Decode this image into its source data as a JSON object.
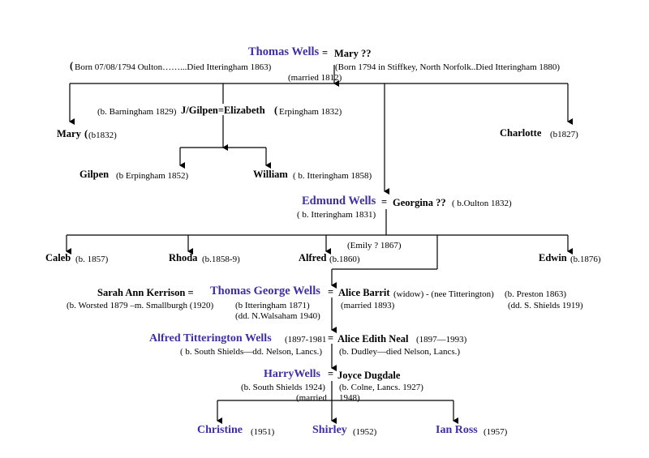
{
  "tree": {
    "gen1": {
      "husband_name": "Thomas Wells",
      "eq": "=",
      "wife_name": "Mary ??",
      "husband_note_paren": "(",
      "husband_note": "Born 07/08/1794  Oulton……...Died  Itteringham 1863)",
      "wife_note": "(Born 1794 in Stiffkey, North Norfolk..Died Itteringham 1880)",
      "married": "(married 1812)"
    },
    "couple2": {
      "left_note": "(b. Barningham 1829)",
      "names": "J/Gilpen=Elizabeth",
      "right_paren": "(",
      "right_note": "Erpingham 1832)"
    },
    "mary": {
      "name": "Mary",
      "note": "(b1832)"
    },
    "charlotte": {
      "name": "Charlotte",
      "note": "(b1827)"
    },
    "gilpen": {
      "name": "Gilpen",
      "note": "(b Erpingham 1852)"
    },
    "william": {
      "name": "William",
      "note": "( b. Itteringham 1858)"
    },
    "gen2": {
      "husband_name": "Edmund Wells",
      "eq": "=",
      "wife_name": "Georgina ??",
      "wife_note": "( b.Oulton 1832)",
      "husband_note": "( b. Itteringham 1831)"
    },
    "emily": "(Emily ? 1867)",
    "caleb": {
      "name": "Caleb",
      "note": "(b. 1857)"
    },
    "rhoda": {
      "name": "Rhoda",
      "note": "(b.1858-9)"
    },
    "alfred": {
      "name": "Alfred",
      "note": "(b.1860)"
    },
    "edwin": {
      "name": "Edwin",
      "note": "(b.1876)"
    },
    "gen3": {
      "first_wife": "Sarah Ann Kerrison   =",
      "first_wife_note": "(b. Worsted 1879 –m. Smallburgh (1920)",
      "husband_name": "Thomas George Wells",
      "husband_note": "(b Itteringham 1871)",
      "husband_death": "(dd. N.Walsaham 1940)",
      "eq": "=",
      "wife_name": "Alice Barrit",
      "wife_extra": "(widow) - (nee Titterington)",
      "wife_born": "(b. Preston  1863)",
      "married": "(married 1893)",
      "wife_death": "(dd. S. Shields 1919)"
    },
    "gen4": {
      "husband_name": "Alfred Titterington Wells",
      "husband_dates": "(1897-1981",
      "eq": "=",
      "wife_name": "Alice Edith Neal",
      "wife_dates": "(1897—1993)",
      "husband_note": "( b. South Shields—dd. Nelson, Lancs.)",
      "wife_note": "(b. Dudley—died Nelson, Lancs.)"
    },
    "gen5": {
      "husband_name": "HarryWells",
      "eq": "=",
      "wife_name": "Joyce Dugdale",
      "husband_note": "(b. South Shields 1924)",
      "wife_note": "(b.  Colne, Lancs. 1927)",
      "married_a": "(married",
      "married_b": "1948)"
    },
    "children": [
      {
        "name": "Christine",
        "note": "(1951)"
      },
      {
        "name": "Shirley",
        "note": "(1952)"
      },
      {
        "name": "Ian Ross",
        "note": "(1957)"
      }
    ]
  }
}
